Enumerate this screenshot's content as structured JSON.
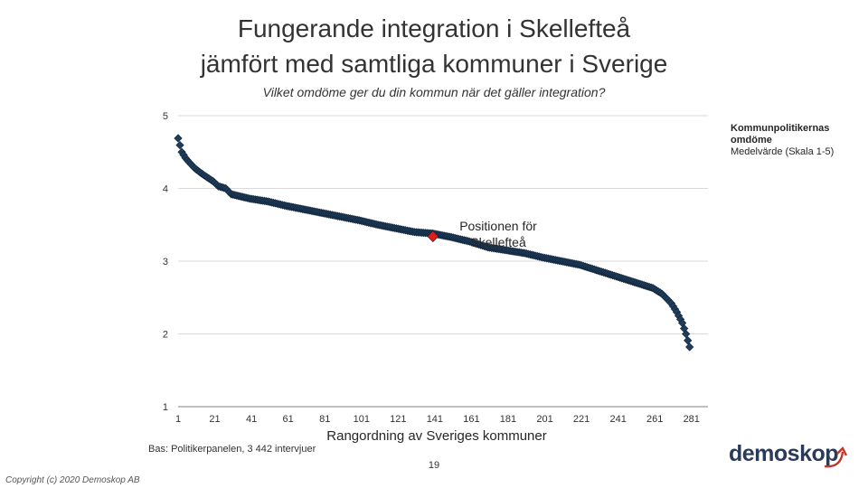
{
  "slide": {
    "title_line1": "Fungerande integration i Skellefteå",
    "title_line2": "jämfört med samtliga kommuner i Sverige",
    "subtitle": "Vilket omdöme ger du din kommun när det gäller integration?",
    "base": "Bas: Politikerpanelen, 3 442 intervjuer",
    "page_number": "19",
    "copyright": "Copyright (c) 2020 Demoskop AB",
    "logo_text": "demoskop"
  },
  "legend": {
    "line1": "Kommunpolitikernas omdöme",
    "line2": "Medelvärde (Skala 1-5)"
  },
  "colors": {
    "marker": "#1f3d5c",
    "highlight": "#e01b1b",
    "gridline": "#d9d9d9",
    "logo_arrow": "#c0392b"
  },
  "chart_data": {
    "type": "scatter",
    "xlabel": "Rangordning av Sveriges kommuner",
    "ylabel": "",
    "ylim": [
      1,
      5
    ],
    "xlim": [
      1,
      290
    ],
    "x_ticks": [
      1,
      21,
      41,
      61,
      81,
      101,
      121,
      141,
      161,
      181,
      201,
      221,
      241,
      261,
      281
    ],
    "y_ticks": [
      1,
      2,
      3,
      4,
      5
    ],
    "grid": "horizontal",
    "curve_anchors": [
      [
        1,
        4.69
      ],
      [
        3,
        4.5
      ],
      [
        5,
        4.42
      ],
      [
        7,
        4.36
      ],
      [
        10,
        4.28
      ],
      [
        13,
        4.22
      ],
      [
        17,
        4.15
      ],
      [
        20,
        4.1
      ],
      [
        23,
        4.03
      ],
      [
        27,
        4.0
      ],
      [
        30,
        3.92
      ],
      [
        40,
        3.86
      ],
      [
        50,
        3.82
      ],
      [
        60,
        3.76
      ],
      [
        70,
        3.71
      ],
      [
        80,
        3.66
      ],
      [
        90,
        3.61
      ],
      [
        100,
        3.56
      ],
      [
        110,
        3.5
      ],
      [
        120,
        3.45
      ],
      [
        130,
        3.4
      ],
      [
        140,
        3.38
      ],
      [
        150,
        3.33
      ],
      [
        160,
        3.27
      ],
      [
        170,
        3.19
      ],
      [
        180,
        3.15
      ],
      [
        190,
        3.11
      ],
      [
        200,
        3.05
      ],
      [
        210,
        3.0
      ],
      [
        220,
        2.95
      ],
      [
        230,
        2.87
      ],
      [
        240,
        2.79
      ],
      [
        250,
        2.71
      ],
      [
        260,
        2.63
      ],
      [
        265,
        2.55
      ],
      [
        270,
        2.42
      ],
      [
        273,
        2.3
      ],
      [
        276,
        2.15
      ],
      [
        278,
        2.0
      ],
      [
        280,
        1.82
      ]
    ],
    "highlight": {
      "label": "Positionen för Skellefteå",
      "x": 140,
      "y": 3.34
    }
  }
}
